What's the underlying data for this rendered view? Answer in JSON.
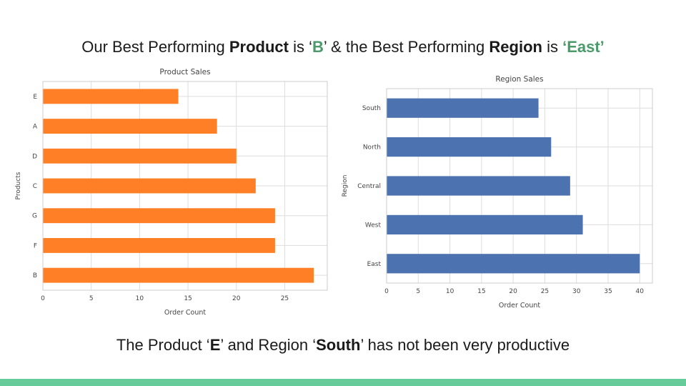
{
  "headline": {
    "part1": "Our Best Performing ",
    "product_word": "Product",
    "part2": " is ‘",
    "best_product": "B",
    "part3": "’ & the Best Performing ",
    "region_word": "Region",
    "part4": " is ",
    "best_region": "‘East’"
  },
  "footline": {
    "part1": "The Product  ‘",
    "worst_product": "E",
    "part2": "’ and Region ‘",
    "worst_region": "South",
    "part3": "’ has not been very productive"
  },
  "colors": {
    "product_bar": "#ff7f27",
    "region_bar": "#4c72b0",
    "accent_green": "#4a9a6a",
    "bottom_bar": "#66cc99",
    "grid": "#dddddd"
  },
  "chart_data": [
    {
      "type": "bar",
      "orientation": "horizontal",
      "title": "Product Sales",
      "xlabel": "Order Count",
      "ylabel": "Products",
      "categories": [
        "E",
        "A",
        "D",
        "C",
        "G",
        "F",
        "B"
      ],
      "values": [
        14,
        18,
        20,
        22,
        24,
        24,
        28
      ],
      "xlim": [
        0,
        29.4
      ],
      "xticks": [
        0,
        5,
        10,
        15,
        20,
        25
      ],
      "grid": true,
      "color": "#ff7f27"
    },
    {
      "type": "bar",
      "orientation": "horizontal",
      "title": "Region Sales",
      "xlabel": "Order Count",
      "ylabel": "Region",
      "categories": [
        "South",
        "North",
        "Central",
        "West",
        "East"
      ],
      "values": [
        24,
        26,
        29,
        31,
        40
      ],
      "xlim": [
        0,
        42
      ],
      "xticks": [
        0,
        5,
        10,
        15,
        20,
        25,
        30,
        35,
        40
      ],
      "grid": true,
      "color": "#4c72b0"
    }
  ]
}
